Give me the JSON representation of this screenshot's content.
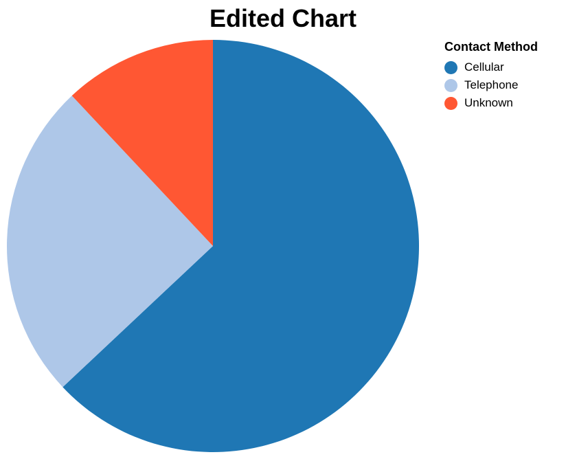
{
  "chart_data": {
    "type": "pie",
    "title": "Edited Chart",
    "legend_title": "Contact Method",
    "legend_position": "top-right",
    "categories": [
      "Cellular",
      "Telephone",
      "Unknown"
    ],
    "values": [
      63.0,
      25.0,
      12.0
    ],
    "colors": [
      "#1f77b4",
      "#aec7e8",
      "#ff5733"
    ],
    "start_angle": "12 o'clock",
    "direction": "clockwise"
  }
}
